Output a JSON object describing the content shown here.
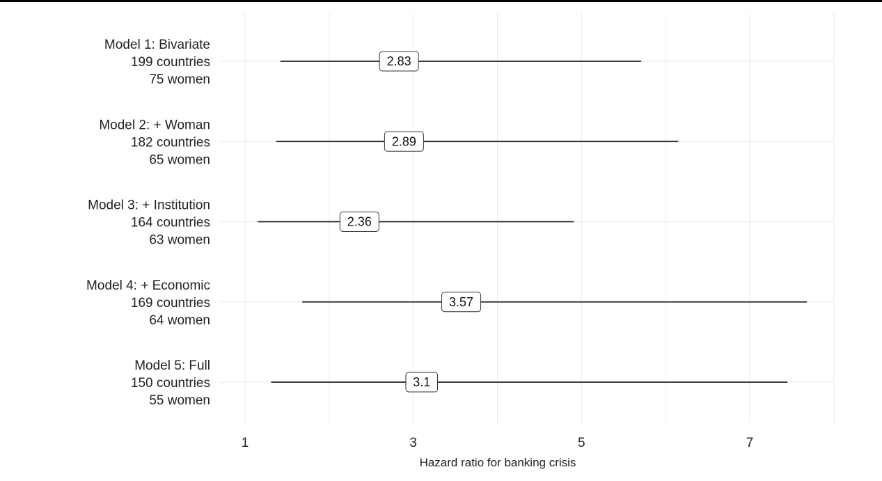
{
  "chart_data": {
    "type": "forest",
    "xlabel": "Hazard ratio for banking crisis",
    "xlim": [
      0,
      8.1
    ],
    "xticks": [
      1,
      3,
      5,
      7
    ],
    "grid": true,
    "models": [
      {
        "label": [
          "Model 1: Bivariate",
          "199 countries",
          "75 women"
        ],
        "estimate": 2.83,
        "display": "2.83",
        "ci_low": 1.42,
        "ci_high": 5.71
      },
      {
        "label": [
          "Model 2: + Woman",
          "182 countries",
          "65 women"
        ],
        "estimate": 2.89,
        "display": "2.89",
        "ci_low": 1.37,
        "ci_high": 6.15
      },
      {
        "label": [
          "Model 3: + Institution",
          "164 countries",
          "63 women"
        ],
        "estimate": 2.36,
        "display": "2.36",
        "ci_low": 1.15,
        "ci_high": 4.91
      },
      {
        "label": [
          "Model 4: + Economic",
          "169 countries",
          "64 women"
        ],
        "estimate": 3.57,
        "display": "3.57",
        "ci_low": 1.68,
        "ci_high": 7.68
      },
      {
        "label": [
          "Model 5: Full",
          "150 countries",
          "55 women"
        ],
        "estimate": 3.1,
        "display": "3.1",
        "ci_low": 1.31,
        "ci_high": 7.45
      }
    ]
  }
}
